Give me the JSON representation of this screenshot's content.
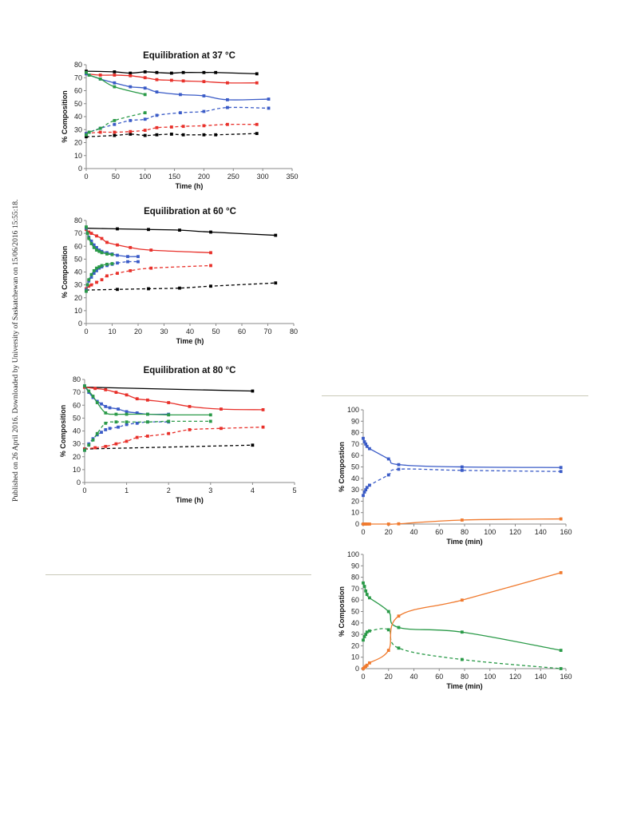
{
  "sidebar_note": "Published on 26 April 2016. Downloaded by University of Saskatchewan on 15/06/2016 15:55:18.",
  "chart_data": [
    {
      "type": "line",
      "title": "Equilibration at 37 °C",
      "xlabel": "Time (h)",
      "ylabel": "% Composition",
      "xlim": [
        0,
        350
      ],
      "ylim": [
        0,
        80
      ],
      "xticks": [
        0,
        50,
        100,
        150,
        200,
        250,
        300,
        350
      ],
      "yticks": [
        0,
        10,
        20,
        30,
        40,
        50,
        60,
        70,
        80
      ],
      "grid": false,
      "series": [
        {
          "color": "#000000",
          "dashed": false,
          "x": [
            0,
            48,
            75,
            100,
            120,
            145,
            165,
            200,
            220,
            290
          ],
          "y": [
            75,
            74.5,
            73.5,
            74.5,
            74,
            73.5,
            74,
            74,
            74,
            73
          ]
        },
        {
          "color": "#000000",
          "dashed": true,
          "x": [
            0,
            48,
            75,
            100,
            120,
            145,
            165,
            200,
            220,
            290
          ],
          "y": [
            24.5,
            25.5,
            26.5,
            25.5,
            26,
            26.5,
            26,
            26,
            26,
            27
          ]
        },
        {
          "color": "#e8302a",
          "dashed": false,
          "x": [
            0,
            24,
            48,
            75,
            100,
            120,
            145,
            165,
            200,
            240,
            290
          ],
          "y": [
            73,
            72,
            72,
            71.5,
            70,
            68.5,
            68,
            67.5,
            67,
            66,
            66
          ]
        },
        {
          "color": "#e8302a",
          "dashed": true,
          "x": [
            0,
            24,
            48,
            75,
            100,
            120,
            145,
            165,
            200,
            240,
            290
          ],
          "y": [
            27,
            28,
            28,
            28.5,
            29.5,
            31.5,
            32,
            32.5,
            33,
            34,
            34
          ]
        },
        {
          "color": "#3a5bc7",
          "dashed": false,
          "x": [
            0,
            5,
            24,
            48,
            75,
            100,
            120,
            160,
            200,
            240,
            310
          ],
          "y": [
            73,
            72,
            69,
            66,
            63,
            62,
            59,
            57,
            56,
            53,
            53.5
          ]
        },
        {
          "color": "#3a5bc7",
          "dashed": true,
          "x": [
            0,
            5,
            24,
            48,
            75,
            100,
            120,
            160,
            200,
            240,
            310
          ],
          "y": [
            27,
            28,
            31,
            34,
            37,
            38,
            41,
            43,
            44,
            47,
            46.5
          ]
        },
        {
          "color": "#2a9a48",
          "dashed": false,
          "x": [
            0,
            5,
            24,
            48,
            100
          ],
          "y": [
            74,
            72,
            69,
            63,
            57
          ]
        },
        {
          "color": "#2a9a48",
          "dashed": true,
          "x": [
            0,
            5,
            24,
            48,
            100
          ],
          "y": [
            26,
            28,
            31,
            37,
            43
          ]
        }
      ]
    },
    {
      "type": "line",
      "title": "Equilibration at 60 °C",
      "xlabel": "Time (h)",
      "ylabel": "% Composition",
      "xlim": [
        0,
        80
      ],
      "ylim": [
        0,
        80
      ],
      "xticks": [
        0,
        10,
        20,
        30,
        40,
        50,
        60,
        70,
        80
      ],
      "yticks": [
        0,
        10,
        20,
        30,
        40,
        50,
        60,
        70,
        80
      ],
      "grid": false,
      "series": [
        {
          "color": "#000000",
          "dashed": false,
          "x": [
            0,
            12,
            24,
            36,
            48,
            73
          ],
          "y": [
            74,
            73.5,
            73,
            72.5,
            71,
            68.5
          ]
        },
        {
          "color": "#000000",
          "dashed": true,
          "x": [
            0,
            12,
            24,
            36,
            48,
            73
          ],
          "y": [
            26,
            26.5,
            27,
            27.5,
            29,
            31.5
          ]
        },
        {
          "color": "#e8302a",
          "dashed": false,
          "x": [
            0,
            1,
            2,
            4,
            6,
            8,
            12,
            17,
            25,
            48
          ],
          "y": [
            73,
            71,
            70,
            68,
            66,
            63,
            61,
            59,
            57,
            55
          ]
        },
        {
          "color": "#e8302a",
          "dashed": true,
          "x": [
            0,
            1,
            2,
            4,
            6,
            8,
            12,
            17,
            25,
            48
          ],
          "y": [
            27,
            29,
            30,
            32,
            34,
            37,
            39,
            41,
            43,
            45
          ]
        },
        {
          "color": "#3a5bc7",
          "dashed": false,
          "x": [
            0,
            0.5,
            1,
            2,
            3,
            4,
            5,
            6,
            8,
            10,
            12,
            16,
            20
          ],
          "y": [
            74,
            70,
            67,
            64,
            61,
            59,
            57,
            56,
            55,
            54,
            53,
            52,
            52
          ]
        },
        {
          "color": "#3a5bc7",
          "dashed": true,
          "x": [
            0,
            0.5,
            1,
            2,
            3,
            4,
            5,
            6,
            8,
            10,
            12,
            16,
            20
          ],
          "y": [
            26,
            30,
            33,
            36,
            39,
            41,
            43,
            44,
            45,
            46,
            47,
            48,
            48
          ]
        },
        {
          "color": "#2a9a48",
          "dashed": false,
          "x": [
            0,
            0.5,
            1,
            2,
            3,
            4,
            5,
            6,
            8,
            10
          ],
          "y": [
            75,
            70,
            66,
            62,
            59,
            57,
            56,
            55,
            54,
            53.5
          ]
        },
        {
          "color": "#2a9a48",
          "dashed": true,
          "x": [
            0,
            0.5,
            1,
            2,
            3,
            4,
            5,
            6,
            8,
            10
          ],
          "y": [
            25,
            30,
            34,
            38,
            41,
            43,
            44,
            45,
            46,
            46.5
          ]
        }
      ]
    },
    {
      "type": "line",
      "title": "Equilibration at 80 °C",
      "xlabel": "Time (h)",
      "ylabel": "% Composition",
      "xlim": [
        0,
        5
      ],
      "ylim": [
        0,
        80
      ],
      "xticks": [
        0,
        1,
        2,
        3,
        4,
        5
      ],
      "yticks": [
        0,
        10,
        20,
        30,
        40,
        50,
        60,
        70,
        80
      ],
      "grid": false,
      "series": [
        {
          "color": "#000000",
          "dashed": false,
          "x": [
            0,
            4
          ],
          "y": [
            74,
            71
          ]
        },
        {
          "color": "#000000",
          "dashed": true,
          "x": [
            0,
            4
          ],
          "y": [
            26,
            29
          ]
        },
        {
          "color": "#e8302a",
          "dashed": false,
          "x": [
            0,
            0.25,
            0.5,
            0.75,
            1,
            1.25,
            1.5,
            2,
            2.5,
            3.25,
            4.25
          ],
          "y": [
            74,
            73,
            72,
            70,
            68,
            65,
            64,
            62,
            59,
            57,
            56.5
          ]
        },
        {
          "color": "#e8302a",
          "dashed": true,
          "x": [
            0,
            0.25,
            0.5,
            0.75,
            1,
            1.25,
            1.5,
            2,
            2.5,
            3.25,
            4.25
          ],
          "y": [
            26,
            27,
            28,
            30,
            32,
            35,
            36,
            38,
            41,
            42,
            43
          ]
        },
        {
          "color": "#3a5bc7",
          "dashed": false,
          "x": [
            0,
            0.1,
            0.2,
            0.3,
            0.4,
            0.5,
            0.6,
            0.8,
            1,
            1.25,
            1.5,
            2
          ],
          "y": [
            75,
            70,
            66,
            63,
            61,
            59,
            58,
            57,
            55,
            54,
            53,
            53
          ]
        },
        {
          "color": "#3a5bc7",
          "dashed": true,
          "x": [
            0,
            0.1,
            0.2,
            0.3,
            0.4,
            0.5,
            0.6,
            0.8,
            1,
            1.25,
            1.5,
            2
          ],
          "y": [
            25,
            30,
            34,
            37,
            39,
            41,
            42,
            43,
            45,
            46,
            47,
            47
          ]
        },
        {
          "color": "#2a9a48",
          "dashed": false,
          "x": [
            0,
            0.1,
            0.2,
            0.3,
            0.5,
            0.75,
            1,
            1.5,
            2,
            3
          ],
          "y": [
            75,
            71,
            67,
            62,
            54,
            53,
            53,
            53,
            52.5,
            52.5
          ]
        },
        {
          "color": "#2a9a48",
          "dashed": true,
          "x": [
            0,
            0.1,
            0.2,
            0.3,
            0.5,
            0.75,
            1,
            1.5,
            2,
            3
          ],
          "y": [
            25,
            29,
            33,
            38,
            46,
            47,
            47,
            47,
            47.5,
            47.5
          ]
        }
      ]
    },
    {
      "type": "line",
      "title": "",
      "xlabel": "Time (min)",
      "ylabel": "% Compostion",
      "xlim": [
        0,
        160
      ],
      "ylim": [
        0,
        100
      ],
      "xticks": [
        0,
        20,
        40,
        60,
        80,
        100,
        120,
        140,
        160
      ],
      "yticks": [
        0,
        10,
        20,
        30,
        40,
        50,
        60,
        70,
        80,
        90,
        100
      ],
      "grid": false,
      "series": [
        {
          "color": "#3a5bc7",
          "dashed": false,
          "x": [
            0,
            1,
            2,
            3,
            5,
            20,
            28,
            78,
            156
          ],
          "y": [
            75,
            72,
            70,
            68,
            66,
            57,
            52,
            50,
            49.5
          ]
        },
        {
          "color": "#3a5bc7",
          "dashed": true,
          "x": [
            0,
            1,
            2,
            3,
            5,
            20,
            28,
            78,
            156
          ],
          "y": [
            25,
            28,
            30,
            32,
            34,
            43,
            48,
            47,
            46
          ]
        },
        {
          "color": "#f07a2e",
          "dashed": false,
          "x": [
            0,
            1,
            2,
            3,
            5,
            20,
            28,
            78,
            156
          ],
          "y": [
            0,
            0,
            0,
            0,
            0,
            0,
            0.2,
            3.5,
            4.5
          ]
        }
      ]
    },
    {
      "type": "line",
      "title": "",
      "xlabel": "Time (min)",
      "ylabel": "% Compostion",
      "xlim": [
        0,
        160
      ],
      "ylim": [
        0,
        100
      ],
      "xticks": [
        0,
        20,
        40,
        60,
        80,
        100,
        120,
        140,
        160
      ],
      "yticks": [
        0,
        10,
        20,
        30,
        40,
        50,
        60,
        70,
        80,
        90,
        100
      ],
      "grid": false,
      "series": [
        {
          "color": "#2a9a48",
          "dashed": false,
          "x": [
            0,
            1,
            2,
            3,
            5,
            20,
            28,
            78,
            156
          ],
          "y": [
            75,
            72,
            68,
            65,
            62,
            50,
            36,
            32,
            16
          ]
        },
        {
          "color": "#2a9a48",
          "dashed": true,
          "x": [
            0,
            1,
            2,
            3,
            5,
            20,
            28,
            78,
            156
          ],
          "y": [
            25,
            28,
            30,
            32,
            33,
            34,
            18,
            8,
            0
          ]
        },
        {
          "color": "#f07a2e",
          "dashed": false,
          "x": [
            0,
            1,
            2,
            3,
            5,
            20,
            28,
            78,
            156
          ],
          "y": [
            0,
            1,
            2,
            3,
            5,
            16,
            46,
            60,
            84
          ]
        }
      ]
    }
  ]
}
